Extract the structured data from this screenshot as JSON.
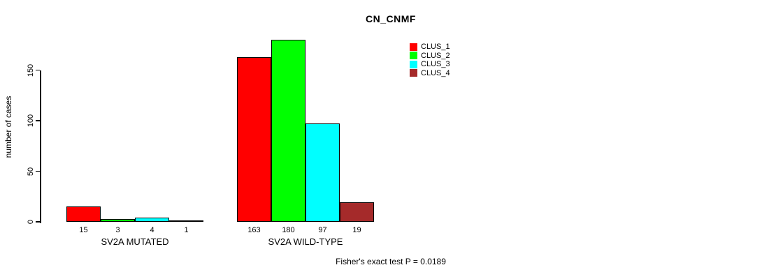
{
  "header": {
    "title": "CN_CNMF"
  },
  "footer": {
    "annotation": "Fisher's exact test P = 0.0189"
  },
  "colors": {
    "background": "#ffffff",
    "axis": "#000000",
    "text": "#000000",
    "clus_1": "#ff0000",
    "clus_2": "#00ff00",
    "clus_3": "#00ffff",
    "clus_4": "#a52a2a"
  },
  "chart_data": {
    "type": "bar",
    "title": "CN_CNMF",
    "xlabel": "",
    "ylabel": "number of cases",
    "ylim": [
      0,
      180
    ],
    "yticks": [
      0,
      50,
      100,
      150
    ],
    "grid": false,
    "legend_position": "top-right",
    "categories": [
      "SV2A MUTATED",
      "SV2A WILD-TYPE"
    ],
    "series": [
      {
        "name": "CLUS_1",
        "color": "#ff0000",
        "values": [
          15,
          163
        ]
      },
      {
        "name": "CLUS_2",
        "color": "#00ff00",
        "values": [
          3,
          180
        ]
      },
      {
        "name": "CLUS_3",
        "color": "#00ffff",
        "values": [
          4,
          97
        ]
      },
      {
        "name": "CLUS_4",
        "color": "#a52a2a",
        "values": [
          1,
          19
        ]
      }
    ],
    "bar_value_labels_shown": true,
    "annotation": "Fisher's exact test P = 0.0189"
  }
}
